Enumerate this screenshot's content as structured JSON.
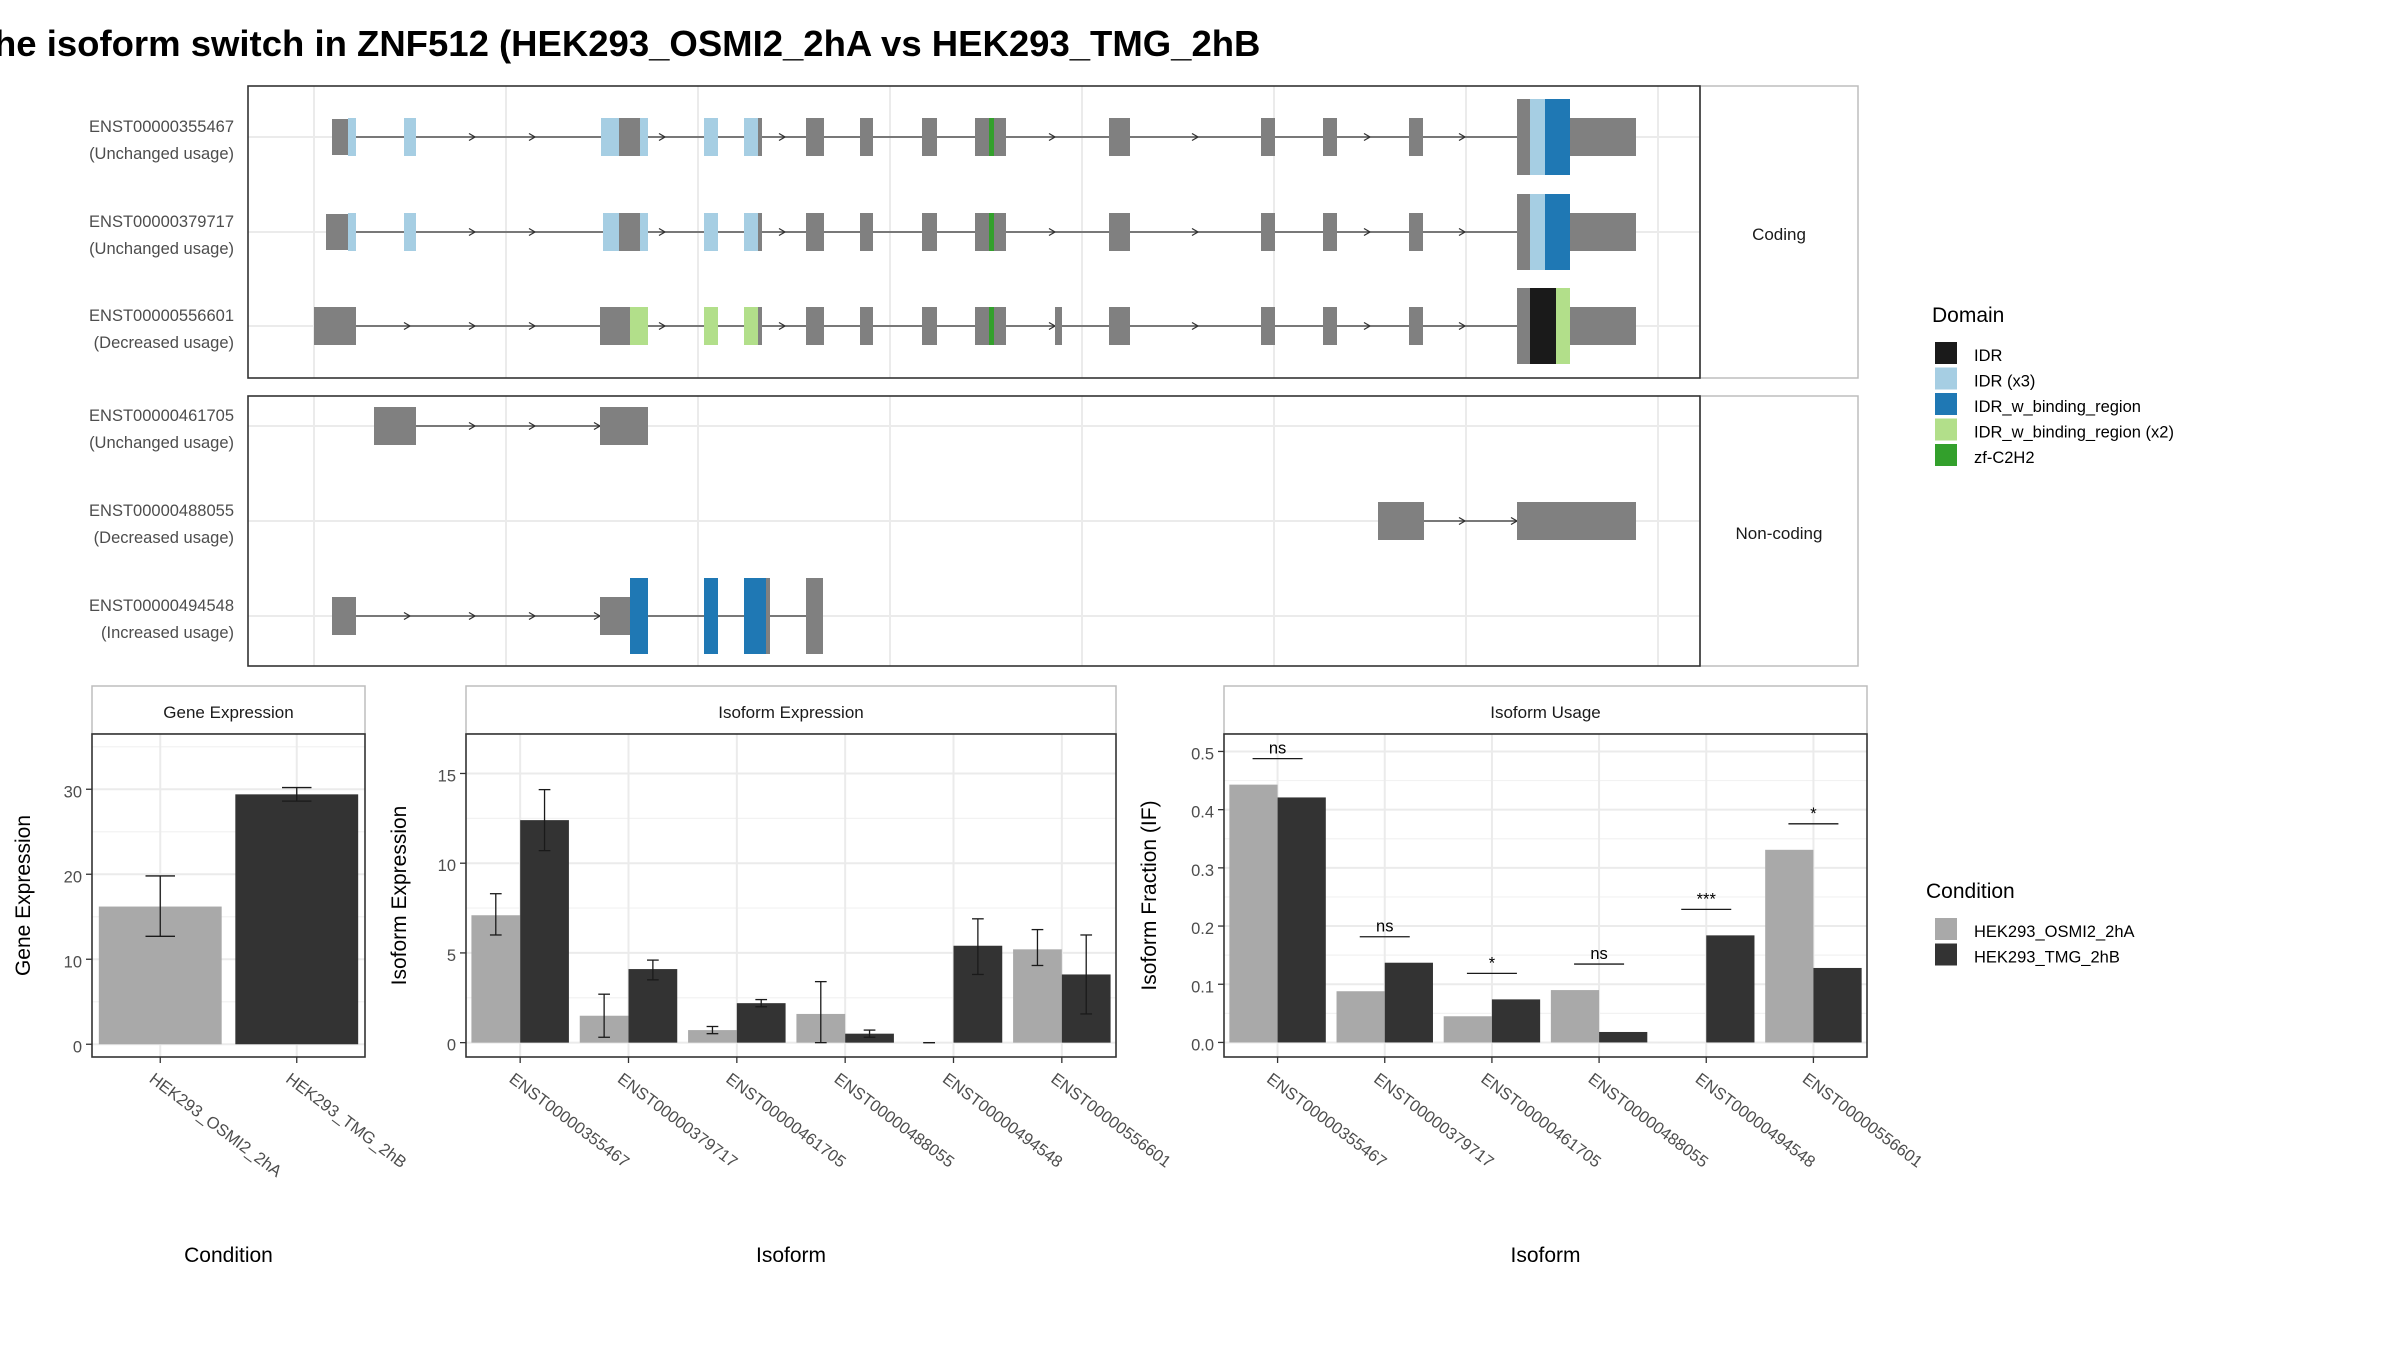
{
  "title": "he isoform switch in ZNF512 (HEK293_OSMI2_2hA vs HEK293_TMG_2hB",
  "colors": {
    "exon": "#808080",
    "IDR": "#1a1a1a",
    "IDR (x3)": "#a6cee3",
    "IDR_w_binding_region": "#1f78b4",
    "IDR_w_binding_region (x2)": "#b2df8a",
    "zf-C2H2": "#33a02c",
    "HEK293_OSMI2_2hA": "#a9a9a9",
    "HEK293_TMG_2hB": "#333333"
  },
  "domain_legend": {
    "title": "Domain",
    "items": [
      "IDR",
      "IDR (x3)",
      "IDR_w_binding_region",
      "IDR_w_binding_region (x2)",
      "zf-C2H2"
    ]
  },
  "condition_legend": {
    "title": "Condition",
    "items": [
      "HEK293_OSMI2_2hA",
      "HEK293_TMG_2hB"
    ]
  },
  "transcript_panel": {
    "groups": [
      {
        "label": "Coding",
        "transcripts": [
          {
            "id": "ENST00000355467",
            "usage": "(Unchanged usage)"
          },
          {
            "id": "ENST00000379717",
            "usage": "(Unchanged usage)"
          },
          {
            "id": "ENST00000556601",
            "usage": "(Decreased usage)"
          }
        ]
      },
      {
        "label": "Non-coding",
        "transcripts": [
          {
            "id": "ENST00000461705",
            "usage": "(Unchanged usage)"
          },
          {
            "id": "ENST00000488055",
            "usage": "(Decreased usage)"
          },
          {
            "id": "ENST00000494548",
            "usage": "(Increased usage)"
          }
        ]
      }
    ]
  },
  "chart_data": [
    {
      "type": "bar",
      "title": "Gene Expression",
      "xlabel": "Condition",
      "ylabel": "Gene Expression",
      "categories": [
        "HEK293_OSMI2_2hA",
        "HEK293_TMG_2hB"
      ],
      "values": [
        16.2,
        29.4
      ],
      "error_low": [
        12.7,
        28.6
      ],
      "error_high": [
        19.8,
        30.2
      ],
      "ylim": [
        -1.5,
        36.5
      ],
      "yticks": [
        0,
        10,
        20,
        30
      ],
      "grid": true
    },
    {
      "type": "bar",
      "title": "Isoform Expression",
      "xlabel": "Isoform",
      "ylabel": "Isoform Expression",
      "categories": [
        "ENST00000355467",
        "ENST00000379717",
        "ENST00000461705",
        "ENST00000488055",
        "ENST00000494548",
        "ENST00000556601"
      ],
      "series": [
        {
          "name": "HEK293_OSMI2_2hA",
          "values": [
            7.1,
            1.5,
            0.7,
            1.6,
            0.0,
            5.2
          ],
          "error_low": [
            6.0,
            0.3,
            0.5,
            0.0,
            0.0,
            4.3
          ],
          "error_high": [
            8.3,
            2.7,
            0.9,
            3.4,
            0.0,
            6.3
          ]
        },
        {
          "name": "HEK293_TMG_2hB",
          "values": [
            12.4,
            4.1,
            2.2,
            0.5,
            5.4,
            3.8
          ],
          "error_low": [
            10.7,
            3.5,
            2.0,
            0.3,
            3.8,
            1.6
          ],
          "error_high": [
            14.1,
            4.6,
            2.4,
            0.7,
            6.9,
            6.0
          ]
        }
      ],
      "ylim": [
        -0.8,
        17.2
      ],
      "yticks": [
        0,
        5,
        10,
        15
      ],
      "grid": true
    },
    {
      "type": "bar",
      "title": "Isoform Usage",
      "xlabel": "Isoform",
      "ylabel": "Isoform Fraction (IF)",
      "categories": [
        "ENST00000355467",
        "ENST00000379717",
        "ENST00000461705",
        "ENST00000488055",
        "ENST00000494548",
        "ENST00000556601"
      ],
      "series": [
        {
          "name": "HEK293_OSMI2_2hA",
          "values": [
            0.443,
            0.088,
            0.045,
            0.09,
            0.0,
            0.331
          ]
        },
        {
          "name": "HEK293_TMG_2hB",
          "values": [
            0.421,
            0.137,
            0.074,
            0.018,
            0.184,
            0.128
          ]
        }
      ],
      "significance": [
        "ns",
        "ns",
        "*",
        "ns",
        "***",
        "*"
      ],
      "ylim": [
        -0.025,
        0.53
      ],
      "yticks": [
        0.0,
        0.1,
        0.2,
        0.3,
        0.4,
        0.5
      ],
      "grid": true
    }
  ]
}
